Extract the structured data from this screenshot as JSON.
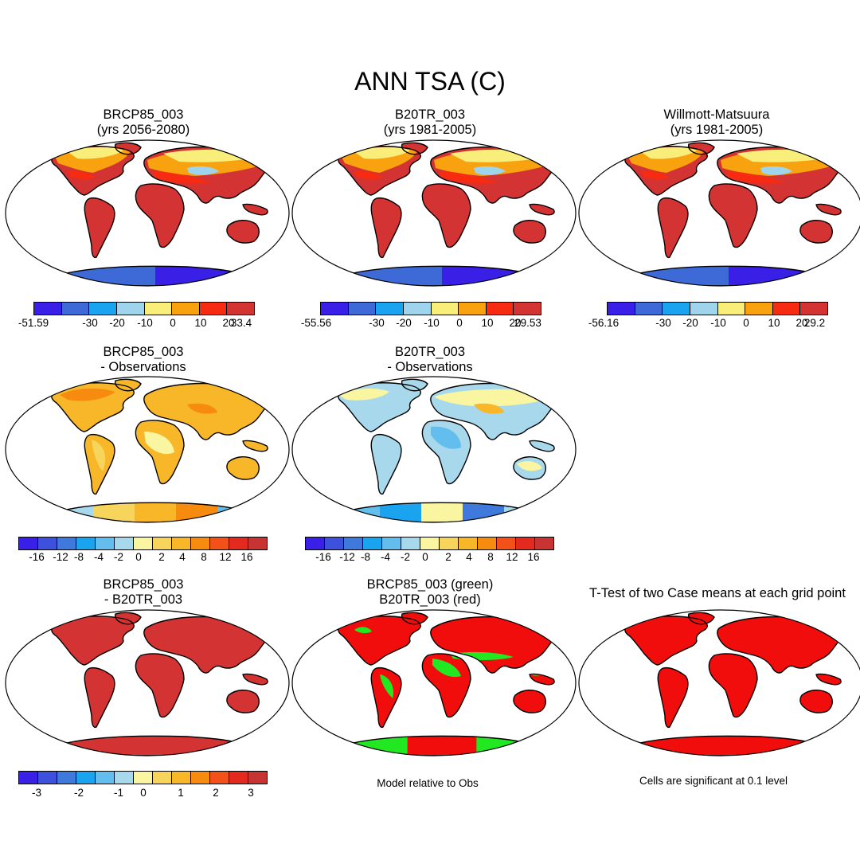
{
  "figure_title": "ANN TSA (C)",
  "panels": [
    {
      "id": "p1",
      "title": "BRCP85_003\n(yrs 2056-2080)",
      "style": "abs"
    },
    {
      "id": "p2",
      "title": "B20TR_003\n(yrs 1981-2005)",
      "style": "abs"
    },
    {
      "id": "p3",
      "title": "Willmott-Matsuura\n(yrs 1981-2005)",
      "style": "abs"
    },
    {
      "id": "p4",
      "title": "BRCP85_003\n- Observations",
      "style": "diff_warm"
    },
    {
      "id": "p5",
      "title": "B20TR_003\n- Observations",
      "style": "diff_cool"
    },
    {
      "id": "p6",
      "title": "BRCP85_003\n- B20TR_003",
      "style": "solid_dark"
    },
    {
      "id": "p7",
      "title": "BRCP85_003 (green)\nB20TR_003 (red)",
      "style": "green_red"
    },
    {
      "id": "p8",
      "title": "T-Test of two Case means at each grid point",
      "style": "solid_red"
    }
  ],
  "colorbars": {
    "abs_colors": [
      "#3a1fe6",
      "#3e6ad8",
      "#1aa3ef",
      "#9fd5ec",
      "#f9ee7a",
      "#f7a20e",
      "#f72a12",
      "#d43333"
    ],
    "diff_colors": [
      "#3a1fe6",
      "#3e51dc",
      "#3f79dc",
      "#1aa3ef",
      "#64beed",
      "#a7d8ec",
      "#f9f5a0",
      "#f7d55c",
      "#f7b728",
      "#f78b10",
      "#f4501a",
      "#e42a1e",
      "#c83434"
    ],
    "p1_labels": [
      "-51.59",
      "-30",
      "-20",
      "-10",
      "0",
      "10",
      "20",
      "33.4"
    ],
    "p2_labels": [
      "-55.56",
      "-30",
      "-20",
      "-10",
      "0",
      "10",
      "20",
      "29.53"
    ],
    "p3_labels": [
      "-56.16",
      "-30",
      "-20",
      "-10",
      "0",
      "10",
      "20",
      "29.2"
    ],
    "p4_labels": [
      "-16",
      "-12",
      "-8",
      "-4",
      "-2",
      "0",
      "2",
      "4",
      "8",
      "12",
      "16"
    ],
    "p5_labels": [
      "-16",
      "-12",
      "-8",
      "-4",
      "-2",
      "0",
      "2",
      "4",
      "8",
      "12",
      "16"
    ],
    "p6_labels": [
      "-3",
      "-2",
      "-1",
      "0",
      "1",
      "2",
      "3"
    ]
  },
  "notes": {
    "model_relative": "Model relative to Obs",
    "significance": "Cells are significant at 0.1 level"
  }
}
